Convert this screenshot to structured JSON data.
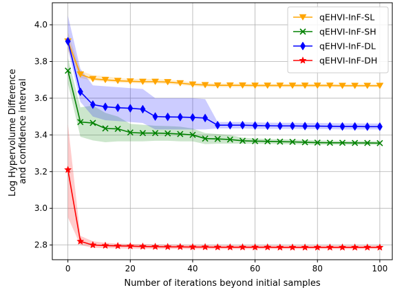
{
  "chart_data": {
    "type": "line",
    "title": "",
    "xlabel": "Number of iterations beyond initial samples",
    "ylabel_lines": [
      "Log Hypervolume Difference",
      "and confidence interval"
    ],
    "xlim": [
      -5,
      104
    ],
    "ylim": [
      2.72,
      4.12
    ],
    "x_ticks": [
      0,
      20,
      40,
      60,
      80,
      100
    ],
    "x_tick_labels": [
      "0",
      "20",
      "40",
      "60",
      "80",
      "100"
    ],
    "y_ticks": [
      2.8,
      3.0,
      3.2,
      3.4,
      3.6,
      3.8,
      4.0
    ],
    "y_tick_labels": [
      "2.8",
      "3.0",
      "3.2",
      "3.4",
      "3.6",
      "3.8",
      "4.0"
    ],
    "grid": true,
    "legend_position": "top-right",
    "x": [
      0,
      4,
      8,
      12,
      16,
      20,
      24,
      28,
      32,
      36,
      40,
      44,
      48,
      52,
      56,
      60,
      64,
      68,
      72,
      76,
      80,
      84,
      88,
      92,
      96,
      100
    ],
    "series": [
      {
        "name": "qEHVI-InF-SL",
        "color": "#ffa500",
        "marker": "triangle-down",
        "values": [
          3.91,
          3.73,
          3.705,
          3.7,
          3.695,
          3.692,
          3.69,
          3.69,
          3.688,
          3.682,
          3.675,
          3.672,
          3.67,
          3.67,
          3.67,
          3.669,
          3.669,
          3.669,
          3.669,
          3.669,
          3.669,
          3.669,
          3.668,
          3.668,
          3.668,
          3.668
        ],
        "lower": [
          3.86,
          3.71,
          3.695,
          3.69,
          3.685,
          3.682,
          3.68,
          3.68,
          3.678,
          3.672,
          3.665,
          3.662,
          3.66,
          3.66,
          3.66,
          3.66,
          3.66,
          3.66,
          3.66,
          3.66,
          3.66,
          3.66,
          3.66,
          3.66,
          3.66,
          3.66
        ],
        "upper": [
          3.96,
          3.75,
          3.725,
          3.72,
          3.71,
          3.705,
          3.705,
          3.705,
          3.7,
          3.695,
          3.685,
          3.682,
          3.68,
          3.68,
          3.68,
          3.678,
          3.678,
          3.678,
          3.678,
          3.678,
          3.678,
          3.678,
          3.677,
          3.677,
          3.677,
          3.677
        ]
      },
      {
        "name": "qEHVI-InF-SH",
        "color": "#008000",
        "marker": "x",
        "values": [
          3.75,
          3.47,
          3.465,
          3.435,
          3.433,
          3.413,
          3.41,
          3.41,
          3.408,
          3.405,
          3.4,
          3.38,
          3.378,
          3.375,
          3.368,
          3.366,
          3.365,
          3.363,
          3.362,
          3.36,
          3.358,
          3.357,
          3.357,
          3.356,
          3.356,
          3.355
        ],
        "lower": [
          3.68,
          3.39,
          3.37,
          3.36,
          3.365,
          3.365,
          3.365,
          3.368,
          3.368,
          3.365,
          3.365,
          3.35,
          3.352,
          3.352,
          3.352,
          3.352,
          3.352,
          3.35,
          3.35,
          3.348,
          3.347,
          3.347,
          3.347,
          3.346,
          3.346,
          3.346
        ],
        "upper": [
          3.82,
          3.55,
          3.56,
          3.52,
          3.5,
          3.46,
          3.455,
          3.45,
          3.448,
          3.445,
          3.435,
          3.41,
          3.405,
          3.4,
          3.385,
          3.38,
          3.378,
          3.376,
          3.374,
          3.372,
          3.37,
          3.368,
          3.367,
          3.366,
          3.366,
          3.365
        ]
      },
      {
        "name": "qEHVI-InF-DL",
        "color": "#0000ff",
        "marker": "diamond",
        "values": [
          3.91,
          3.635,
          3.565,
          3.553,
          3.548,
          3.545,
          3.54,
          3.5,
          3.498,
          3.497,
          3.495,
          3.492,
          3.453,
          3.453,
          3.453,
          3.451,
          3.45,
          3.449,
          3.449,
          3.448,
          3.448,
          3.447,
          3.446,
          3.446,
          3.445,
          3.445
        ],
        "lower": [
          3.87,
          3.58,
          3.5,
          3.48,
          3.475,
          3.47,
          3.465,
          3.43,
          3.43,
          3.43,
          3.43,
          3.43,
          3.435,
          3.435,
          3.435,
          3.433,
          3.433,
          3.433,
          3.433,
          3.432,
          3.432,
          3.431,
          3.43,
          3.43,
          3.43,
          3.43
        ],
        "upper": [
          4.05,
          3.76,
          3.67,
          3.665,
          3.66,
          3.655,
          3.65,
          3.6,
          3.6,
          3.6,
          3.6,
          3.595,
          3.47,
          3.47,
          3.47,
          3.468,
          3.467,
          3.466,
          3.466,
          3.465,
          3.465,
          3.464,
          3.463,
          3.463,
          3.462,
          3.462
        ]
      },
      {
        "name": "qEHVI-InF-DH",
        "color": "#ff0000",
        "marker": "star",
        "values": [
          3.21,
          2.82,
          2.8,
          2.797,
          2.795,
          2.794,
          2.792,
          2.791,
          2.79,
          2.79,
          2.789,
          2.789,
          2.788,
          2.788,
          2.788,
          2.788,
          2.788,
          2.787,
          2.787,
          2.787,
          2.787,
          2.787,
          2.787,
          2.787,
          2.787,
          2.787
        ],
        "lower": [
          2.95,
          2.8,
          2.785,
          2.783,
          2.782,
          2.781,
          2.78,
          2.779,
          2.779,
          2.779,
          2.778,
          2.778,
          2.778,
          2.778,
          2.778,
          2.778,
          2.778,
          2.778,
          2.778,
          2.778,
          2.778,
          2.778,
          2.778,
          2.778,
          2.778,
          2.778
        ],
        "upper": [
          3.46,
          2.85,
          2.82,
          2.812,
          2.808,
          2.806,
          2.805,
          2.803,
          2.802,
          2.801,
          2.8,
          2.8,
          2.8,
          2.799,
          2.799,
          2.799,
          2.799,
          2.798,
          2.798,
          2.798,
          2.798,
          2.798,
          2.798,
          2.798,
          2.798,
          2.798
        ]
      }
    ]
  }
}
